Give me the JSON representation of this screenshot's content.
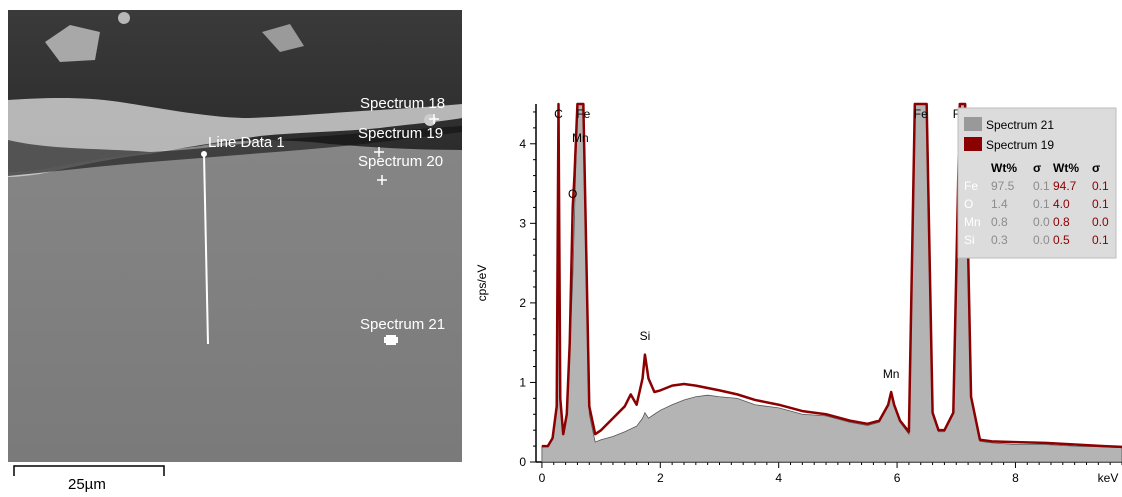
{
  "sem_image": {
    "labels": [
      {
        "text": "Spectrum 18"
      },
      {
        "text": "Spectrum 19"
      },
      {
        "text": "Spectrum 20"
      },
      {
        "text": "Line Data 1"
      },
      {
        "text": "Spectrum 21"
      }
    ],
    "scale_bar_label": "25µm"
  },
  "chart_data": {
    "type": "area",
    "xlabel": "keV",
    "ylabel": "cps/eV",
    "xlim": [
      -0.1,
      9.8
    ],
    "ylim": [
      0,
      4.5
    ],
    "x_ticks": [
      0,
      2,
      4,
      6,
      8
    ],
    "y_ticks": [
      0,
      1,
      2,
      3,
      4
    ],
    "peak_labels": [
      {
        "text": "C",
        "x": 0.28
      },
      {
        "text": "Fe",
        "x": 0.7
      },
      {
        "text": "Mn",
        "x": 0.65
      },
      {
        "text": "O",
        "x": 0.52
      },
      {
        "text": "Si",
        "x": 1.74
      },
      {
        "text": "Mn",
        "x": 5.9
      },
      {
        "text": "Fe",
        "x": 6.4
      },
      {
        "text": "Fe",
        "x": 7.06
      }
    ],
    "series": [
      {
        "name": "Spectrum 21",
        "color": "#999999",
        "x": [
          0.0,
          0.1,
          0.18,
          0.25,
          0.28,
          0.31,
          0.36,
          0.42,
          0.47,
          0.52,
          0.55,
          0.6,
          0.65,
          0.7,
          0.75,
          0.8,
          0.9,
          1.0,
          1.2,
          1.4,
          1.6,
          1.7,
          1.74,
          1.8,
          1.9,
          2.0,
          2.2,
          2.4,
          2.6,
          2.8,
          3.0,
          3.3,
          3.6,
          4.0,
          4.4,
          4.8,
          5.2,
          5.5,
          5.7,
          5.85,
          5.9,
          5.95,
          6.05,
          6.2,
          6.3,
          6.4,
          6.5,
          6.6,
          6.7,
          6.8,
          6.95,
          7.06,
          7.15,
          7.25,
          7.4,
          7.6,
          8.0,
          8.5,
          9.0,
          9.5,
          9.8
        ],
        "y": [
          0.2,
          0.2,
          0.3,
          0.7,
          4.6,
          0.8,
          0.35,
          0.6,
          1.4,
          2.3,
          3.1,
          4.6,
          4.6,
          4.6,
          2.5,
          0.6,
          0.25,
          0.28,
          0.32,
          0.38,
          0.45,
          0.55,
          0.62,
          0.55,
          0.6,
          0.65,
          0.72,
          0.78,
          0.82,
          0.84,
          0.82,
          0.8,
          0.72,
          0.68,
          0.6,
          0.58,
          0.5,
          0.46,
          0.5,
          0.7,
          0.85,
          0.7,
          0.5,
          0.35,
          4.6,
          4.6,
          4.6,
          0.6,
          0.38,
          0.38,
          0.6,
          4.6,
          4.6,
          0.8,
          0.26,
          0.24,
          0.22,
          0.22,
          0.2,
          0.19,
          0.18
        ]
      },
      {
        "name": "Spectrum 19",
        "color": "#8b0000",
        "x": [
          0.0,
          0.1,
          0.18,
          0.25,
          0.28,
          0.31,
          0.36,
          0.42,
          0.47,
          0.52,
          0.55,
          0.6,
          0.65,
          0.7,
          0.75,
          0.8,
          0.9,
          1.0,
          1.2,
          1.4,
          1.5,
          1.6,
          1.7,
          1.74,
          1.8,
          1.9,
          2.0,
          2.2,
          2.4,
          2.6,
          2.8,
          3.0,
          3.3,
          3.6,
          4.0,
          4.4,
          4.8,
          5.2,
          5.5,
          5.7,
          5.85,
          5.9,
          5.95,
          6.05,
          6.2,
          6.3,
          6.4,
          6.5,
          6.6,
          6.7,
          6.8,
          6.95,
          7.06,
          7.15,
          7.25,
          7.4,
          7.6,
          8.0,
          8.5,
          9.0,
          9.5,
          9.8
        ],
        "y": [
          0.2,
          0.2,
          0.3,
          0.7,
          4.6,
          0.8,
          0.35,
          0.6,
          1.5,
          3.2,
          3.6,
          4.6,
          4.6,
          4.6,
          2.6,
          0.7,
          0.35,
          0.4,
          0.55,
          0.7,
          0.85,
          0.72,
          1.05,
          1.35,
          1.05,
          0.88,
          0.9,
          0.96,
          0.98,
          0.96,
          0.93,
          0.9,
          0.85,
          0.78,
          0.72,
          0.64,
          0.6,
          0.52,
          0.48,
          0.52,
          0.72,
          0.88,
          0.72,
          0.52,
          0.38,
          4.6,
          4.6,
          4.6,
          0.62,
          0.4,
          0.4,
          0.62,
          4.6,
          4.6,
          0.82,
          0.28,
          0.26,
          0.25,
          0.24,
          0.22,
          0.2,
          0.19
        ]
      }
    ],
    "legend": {
      "entries": [
        "Spectrum 21",
        "Spectrum 19"
      ],
      "header": [
        "Wt%",
        "σ",
        "Wt%",
        "σ"
      ],
      "rows": [
        {
          "element": "Fe",
          "s21_wt": "97.5",
          "s21_sigma": "0.1",
          "s19_wt": "94.7",
          "s19_sigma": "0.1"
        },
        {
          "element": "O",
          "s21_wt": "1.4",
          "s21_sigma": "0.1",
          "s19_wt": "4.0",
          "s19_sigma": "0.1"
        },
        {
          "element": "Mn",
          "s21_wt": "0.8",
          "s21_sigma": "0.0",
          "s19_wt": "0.8",
          "s19_sigma": "0.0"
        },
        {
          "element": "Si",
          "s21_wt": "0.3",
          "s21_sigma": "0.0",
          "s19_wt": "0.5",
          "s19_sigma": "0.1"
        }
      ],
      "position": "top-right"
    }
  }
}
